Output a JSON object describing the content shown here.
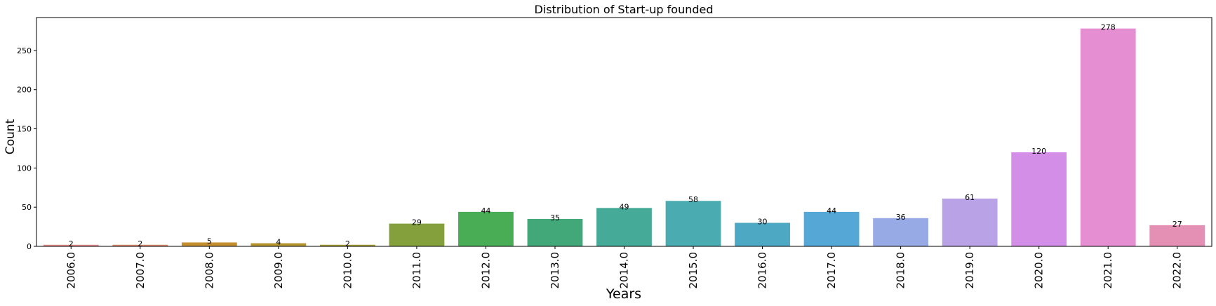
{
  "chart_data": {
    "type": "bar",
    "title": "Distribution of Start-up founded",
    "xlabel": "Years",
    "ylabel": "Count",
    "categories": [
      "2006.0",
      "2007.0",
      "2008.0",
      "2009.0",
      "2010.0",
      "2011.0",
      "2012.0",
      "2013.0",
      "2014.0",
      "2015.0",
      "2016.0",
      "2017.0",
      "2018.0",
      "2019.0",
      "2020.0",
      "2021.0",
      "2022.0"
    ],
    "values": [
      2,
      2,
      5,
      4,
      2,
      29,
      44,
      35,
      49,
      58,
      30,
      44,
      36,
      61,
      120,
      278,
      27
    ],
    "ylim": [
      0,
      292
    ],
    "yticks": [
      0,
      50,
      100,
      150,
      200,
      250
    ],
    "grid": false,
    "colors": [
      "#e58b8b",
      "#d9896a",
      "#c59030",
      "#b6962e",
      "#a39b2f",
      "#83a03d",
      "#48ad55",
      "#43a879",
      "#46aa98",
      "#4aabb0",
      "#4da8c3",
      "#55a8d6",
      "#98aae6",
      "#b9a2e6",
      "#d38fe8",
      "#e58ed1",
      "#e48fb4"
    ]
  }
}
